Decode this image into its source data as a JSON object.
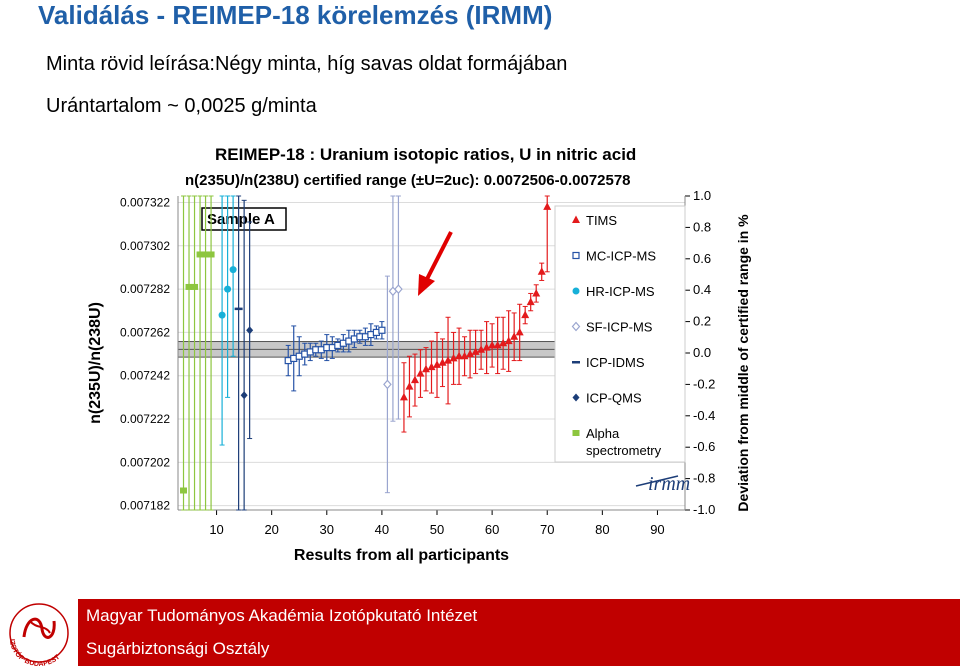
{
  "slide": {
    "title": "Validálás - REIMEP-18 körelemzés (IRMM)",
    "description_line1": "Minta rövid leírása:Négy minta, híg savas oldat formájában",
    "description_line2": "Urántartalom ~ 0,0025 g/minta"
  },
  "footer": {
    "line1": "Magyar Tudományos Akadémia Izotópkutató Intézet",
    "line2": "Sugárbiztonsági Osztály",
    "logo_text": "IZOTÓP·BUDAPEST"
  },
  "colors": {
    "title": "#1f5fa8",
    "footer_bg": "#c00000",
    "arrow": "#e00000"
  },
  "chart_data": {
    "type": "scatter",
    "title": "REIMEP-18 :  Uranium isotopic ratios, U in nitric acid",
    "subtitle": "n(235U)/n(238U) certified range (±U=2uc): 0.0072506-0.0072578",
    "xlabel": "Results from all participants",
    "ylabel": "n(235U)/n(238U)",
    "y2label": "Deviation from middle of certified range in %",
    "sample_label": "Sample A",
    "logo": "irmm",
    "xlim": [
      3,
      95
    ],
    "ylim": [
      0.00718,
      0.007325
    ],
    "y2lim": [
      -1.0,
      1.0
    ],
    "xticks": [
      10,
      20,
      30,
      40,
      50,
      60,
      70,
      80,
      90
    ],
    "yticks": [
      "0.007182",
      "0.007202",
      "0.007222",
      "0.007242",
      "0.007262",
      "0.007282",
      "0.007302",
      "0.007322"
    ],
    "y2ticks": [
      "1.0",
      "0.8",
      "0.6",
      "0.4",
      "0.2",
      "0.0",
      "-0.2",
      "-0.4",
      "-0.6",
      "-0.8",
      "-1.0"
    ],
    "certified_range": [
      0.0072506,
      0.0072578
    ],
    "certified_value": 0.0072542,
    "grid": true,
    "legend_position": "right",
    "series": [
      {
        "name": "Alpha spectrometry",
        "color": "#8dc63f",
        "marker": "square",
        "x": [
          4,
          5,
          6,
          7,
          8,
          9
        ],
        "y": [
          0.007189,
          0.007283,
          0.007283,
          0.007298,
          0.007298,
          0.007298
        ],
        "err": [
          0.00016,
          0.00013,
          0.00013,
          0.00013,
          0.00013,
          0.00013
        ]
      },
      {
        "name": "HR-ICP-MS",
        "color": "#17b0d8",
        "marker": "circle",
        "x": [
          11,
          12,
          13
        ],
        "y": [
          0.00727,
          0.007282,
          0.007291
        ],
        "err": [
          6e-05,
          5e-05,
          4e-05
        ]
      },
      {
        "name": "ICP-IDMS",
        "color": "#1c3d78",
        "marker": "dash",
        "x": [
          14
        ],
        "y": [
          0.007273
        ],
        "err": [
          0.00013
        ]
      },
      {
        "name": "ICP-QMS",
        "color": "#1c3d78",
        "marker": "diamond",
        "x": [
          15,
          16
        ],
        "y": [
          0.007233,
          0.007263
        ],
        "err": [
          9e-05,
          5e-05
        ]
      },
      {
        "name": "MC-ICP-MS",
        "color": "#2552a6",
        "marker": "square-open",
        "x": [
          23,
          24,
          25,
          26,
          27,
          28,
          29,
          30,
          31,
          32,
          33,
          34,
          35,
          36,
          37,
          38,
          39,
          40
        ],
        "y": [
          0.007249,
          0.00725,
          0.007251,
          0.007252,
          0.007253,
          0.007254,
          0.007254,
          0.007255,
          0.007255,
          0.007256,
          0.007257,
          0.007258,
          0.007259,
          0.00726,
          0.00726,
          0.007261,
          0.007262,
          0.007263
        ],
        "err": [
          7e-06,
          1.5e-05,
          9e-06,
          5e-06,
          4e-06,
          3e-06,
          4e-06,
          6e-06,
          5e-06,
          3e-06,
          4e-06,
          5e-06,
          4e-06,
          3e-06,
          4e-06,
          5e-06,
          3e-06,
          4e-06
        ]
      },
      {
        "name": "SF-ICP-MS",
        "color": "#9aa5cf",
        "marker": "diamond-open",
        "x": [
          41,
          42,
          43
        ],
        "y": [
          0.007238,
          0.007281,
          0.007282
        ],
        "err": [
          5e-05,
          6e-05,
          6e-05
        ]
      },
      {
        "name": "TIMS",
        "color": "#e31a1c",
        "marker": "triangle",
        "x": [
          44,
          45,
          46,
          47,
          48,
          49,
          50,
          51,
          52,
          53,
          54,
          55,
          56,
          57,
          58,
          59,
          60,
          61,
          62,
          63,
          64,
          65,
          66,
          67,
          68,
          69,
          70
        ],
        "y": [
          0.007232,
          0.007237,
          0.00724,
          0.007243,
          0.007245,
          0.007246,
          0.007247,
          0.007248,
          0.007249,
          0.00725,
          0.007251,
          0.007251,
          0.007252,
          0.007253,
          0.007254,
          0.007255,
          0.007256,
          0.007256,
          0.007257,
          0.007258,
          0.00726,
          0.007262,
          0.00727,
          0.007276,
          0.00728,
          0.00729,
          0.00732
        ],
        "err": [
          1.6e-05,
          1.4e-05,
          1.2e-05,
          1.1e-05,
          1e-05,
          1.2e-05,
          1.5e-05,
          1.1e-05,
          2e-05,
          1.2e-05,
          1.3e-05,
          9e-06,
          1.1e-05,
          1e-05,
          9e-06,
          1.2e-05,
          1e-05,
          1.3e-05,
          1.2e-05,
          1.4e-05,
          1.1e-05,
          1.3e-05,
          4e-06,
          4e-06,
          4e-06,
          4e-06,
          3e-05
        ]
      }
    ]
  }
}
